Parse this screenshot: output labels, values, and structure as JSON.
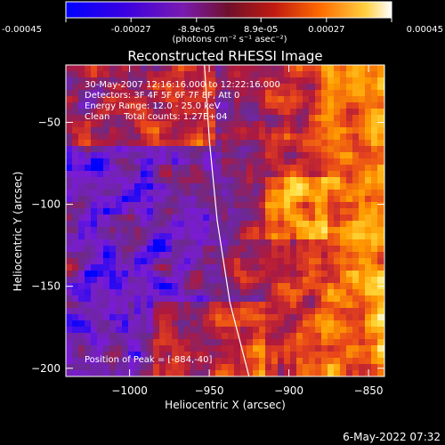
{
  "colorbar": {
    "ticks": [
      "-0.00045",
      "-0.00027",
      "-8.9e-05",
      "8.9e-05",
      "0.00027",
      "0.00045"
    ],
    "tick_values": [
      -0.00045,
      -0.00027,
      -8.9e-05,
      8.9e-05,
      0.00027,
      0.00045
    ],
    "range": [
      -0.00045,
      0.00045
    ],
    "units": "(photons cm⁻² s⁻¹ asec⁻²)"
  },
  "title": "Reconstructed RHESSI Image",
  "info": {
    "line1": "30-May-2007 12:16:16.000 to 12:22:16.000",
    "line2": "Detectors: 3F 4F 5F 6F 7F 8F, Att 0",
    "line3": "Energy Range: 12.0 - 25.0 keV",
    "line4": "Clean     Total counts: 1.27E+04"
  },
  "peak_label": "Position of Peak = [-884,-40]",
  "axes": {
    "xlabel": "Heliocentric X (arcsec)",
    "ylabel": "Heliocentric Y (arcsec)",
    "xlim": [
      -1040,
      -840
    ],
    "ylim": [
      -205,
      -15
    ],
    "xticks": [
      {
        "value": -1000,
        "label": "−1000"
      },
      {
        "value": -950,
        "label": "−950"
      },
      {
        "value": -900,
        "label": "−900"
      },
      {
        "value": -850,
        "label": "−850"
      }
    ],
    "yticks": [
      {
        "value": -50,
        "label": "−50"
      },
      {
        "value": -100,
        "label": "−100"
      },
      {
        "value": -150,
        "label": "−150"
      },
      {
        "value": -200,
        "label": "−200"
      }
    ]
  },
  "limb_curve": [
    [
      -953,
      -15
    ],
    [
      -950,
      -60
    ],
    [
      -945,
      -110
    ],
    [
      -937,
      -160
    ],
    [
      -925,
      -205
    ]
  ],
  "footer_date": "6-May-2022 07:32",
  "colors": {
    "background": "#000000",
    "axes": "#ffffff",
    "colormap": [
      "#0000ff",
      "#7a1bd6",
      "#6b2a8c",
      "#b0193c",
      "#e8451a",
      "#ff9a00",
      "#ffe040",
      "#ffffff"
    ]
  }
}
